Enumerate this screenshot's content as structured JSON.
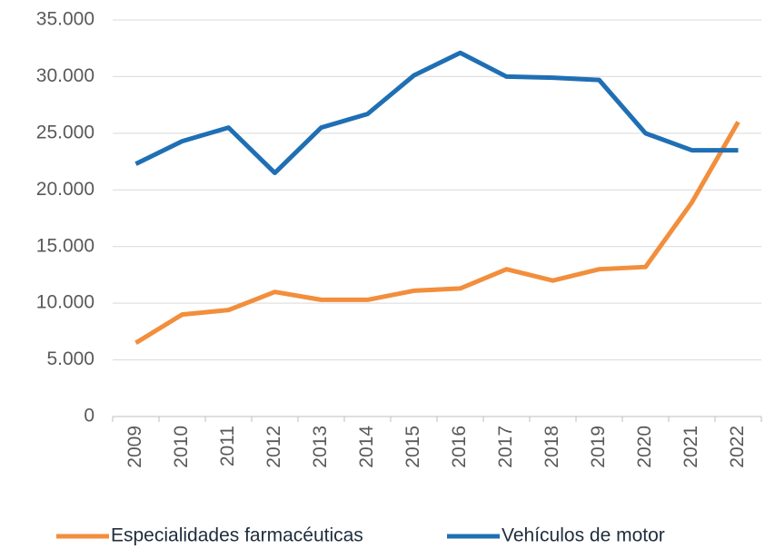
{
  "chart_data": {
    "type": "line",
    "categories": [
      "2009",
      "2010",
      "2011",
      "2012",
      "2013",
      "2014",
      "2015",
      "2016",
      "2017",
      "2018",
      "2019",
      "2020",
      "2021",
      "2022"
    ],
    "series": [
      {
        "name": "Especialidades farmacéuticas",
        "color": "#f28e3c",
        "values": [
          6500,
          9000,
          9400,
          11000,
          10300,
          10300,
          11100,
          11300,
          13000,
          12000,
          13000,
          13200,
          18900,
          26000
        ]
      },
      {
        "name": "Vehículos de motor",
        "color": "#1f6fb4",
        "values": [
          22300,
          24300,
          25500,
          21500,
          25500,
          26700,
          30100,
          32100,
          30000,
          29900,
          29700,
          25000,
          23500,
          23500
        ]
      }
    ],
    "ylim": [
      0,
      35000
    ],
    "yticks": [
      0,
      {
        "value": 5000,
        "label": "5.000"
      },
      {
        "value": 10000,
        "label": "10.000"
      },
      {
        "value": 15000,
        "label": "15.000"
      },
      {
        "value": 20000,
        "label": "20.000"
      },
      {
        "value": 25000,
        "label": "25.000"
      },
      {
        "value": 30000,
        "label": "30.000"
      },
      {
        "value": 35000,
        "label": "35.000"
      }
    ],
    "grid": true,
    "legend": "bottom"
  }
}
